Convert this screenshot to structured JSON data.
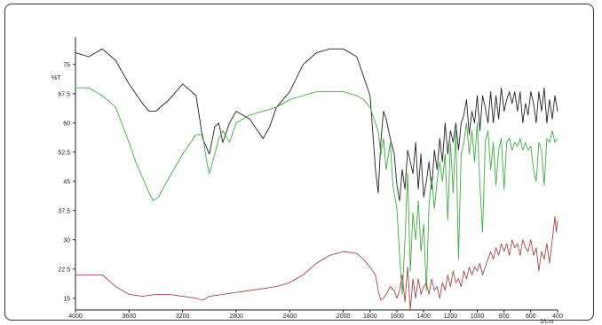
{
  "chart_data": {
    "type": "line",
    "title": "",
    "xlabel": "1/cm",
    "ylabel": "%T",
    "xlim": [
      4000,
      400
    ],
    "ylim": [
      12,
      82
    ],
    "x_ticks": [
      4000,
      3600,
      3200,
      2800,
      2400,
      2000,
      1800,
      1600,
      1400,
      1200,
      1000,
      800,
      600,
      400
    ],
    "y_ticks": [
      15,
      22.5,
      30,
      37.5,
      45,
      52.5,
      60,
      67.5,
      75
    ],
    "x_tick_labels": [
      "4000",
      "3600",
      "3200",
      "2800",
      "2400",
      "2000",
      "1800",
      "1600",
      "1400",
      "1200",
      "1000",
      "800",
      "600",
      "400"
    ],
    "y_tick_labels": [
      "15",
      "22.5",
      "30",
      "37.5",
      "45",
      "52.5",
      "60",
      "67.5",
      "75"
    ],
    "grid": false,
    "legend": "none",
    "series": [
      {
        "color": "#222222",
        "x": [
          4000,
          3900,
          3800,
          3700,
          3600,
          3500,
          3450,
          3400,
          3300,
          3200,
          3100,
          3050,
          3000,
          2960,
          2930,
          2900,
          2850,
          2800,
          2700,
          2600,
          2550,
          2500,
          2400,
          2300,
          2200,
          2100,
          2000,
          1900,
          1850,
          1800,
          1760,
          1740,
          1720,
          1700,
          1680,
          1650,
          1620,
          1600,
          1580,
          1560,
          1540,
          1520,
          1500,
          1480,
          1460,
          1440,
          1420,
          1400,
          1380,
          1360,
          1340,
          1320,
          1300,
          1280,
          1260,
          1240,
          1220,
          1200,
          1180,
          1160,
          1140,
          1120,
          1100,
          1080,
          1060,
          1040,
          1020,
          1000,
          980,
          960,
          940,
          920,
          900,
          880,
          860,
          840,
          820,
          800,
          780,
          760,
          740,
          720,
          700,
          680,
          660,
          640,
          620,
          600,
          580,
          560,
          540,
          520,
          500,
          480,
          460,
          440,
          420,
          400
        ],
        "y": [
          78,
          77,
          79,
          76,
          70,
          65,
          63,
          63,
          66,
          70,
          67,
          56,
          52,
          59,
          60,
          55,
          60,
          63,
          61,
          56,
          59,
          64,
          68,
          75,
          78,
          79,
          79,
          77,
          72,
          67,
          48,
          42,
          55,
          63,
          61,
          56,
          52,
          44,
          40,
          48,
          43,
          53,
          50,
          47,
          55,
          43,
          52,
          41,
          45,
          50,
          43,
          53,
          48,
          56,
          50,
          60,
          52,
          58,
          55,
          60,
          53,
          60,
          62,
          66,
          57,
          63,
          60,
          67,
          58,
          67,
          64,
          60,
          68,
          60,
          67,
          61,
          69,
          63,
          66,
          68,
          65,
          68,
          63,
          68,
          60,
          65,
          62,
          68,
          65,
          60,
          68,
          63,
          69,
          60,
          66,
          61,
          67,
          63
        ]
      },
      {
        "color": "#44aa44",
        "x": [
          4000,
          3900,
          3800,
          3700,
          3600,
          3550,
          3500,
          3450,
          3420,
          3380,
          3300,
          3200,
          3100,
          3050,
          3020,
          3000,
          2960,
          2930,
          2900,
          2850,
          2800,
          2700,
          2600,
          2500,
          2400,
          2300,
          2200,
          2100,
          2000,
          1900,
          1850,
          1800,
          1760,
          1740,
          1720,
          1700,
          1680,
          1650,
          1630,
          1600,
          1580,
          1560,
          1540,
          1520,
          1500,
          1480,
          1460,
          1440,
          1420,
          1400,
          1380,
          1360,
          1340,
          1320,
          1300,
          1280,
          1260,
          1240,
          1220,
          1200,
          1180,
          1160,
          1140,
          1120,
          1100,
          1080,
          1060,
          1040,
          1020,
          1000,
          980,
          960,
          940,
          920,
          900,
          880,
          860,
          840,
          820,
          800,
          780,
          760,
          740,
          720,
          700,
          680,
          660,
          640,
          620,
          600,
          580,
          560,
          540,
          520,
          500,
          480,
          460,
          440,
          420,
          400
        ],
        "y": [
          69,
          69,
          67,
          64,
          55,
          50,
          46,
          42,
          40,
          41,
          46,
          52,
          57,
          57,
          50,
          47,
          52,
          56,
          58,
          55,
          60,
          62,
          63,
          64,
          66,
          67,
          68,
          68,
          68,
          67,
          66,
          64,
          60,
          58,
          52,
          56,
          48,
          55,
          44,
          38,
          26,
          16,
          30,
          47,
          22,
          37,
          30,
          40,
          27,
          34,
          17,
          39,
          46,
          38,
          45,
          50,
          45,
          52,
          35,
          55,
          42,
          58,
          25,
          52,
          55,
          60,
          52,
          58,
          50,
          60,
          44,
          32,
          55,
          58,
          48,
          55,
          44,
          53,
          56,
          43,
          55,
          56,
          53,
          55,
          54,
          56,
          53,
          55,
          53,
          54,
          48,
          45,
          55,
          53,
          44,
          56,
          55,
          58,
          55,
          56
        ]
      },
      {
        "color": "#a04848",
        "x": [
          4000,
          3900,
          3800,
          3700,
          3600,
          3500,
          3400,
          3300,
          3200,
          3100,
          3050,
          3000,
          2900,
          2800,
          2700,
          2600,
          2500,
          2400,
          2300,
          2200,
          2100,
          2000,
          1900,
          1850,
          1800,
          1760,
          1740,
          1720,
          1700,
          1680,
          1650,
          1620,
          1600,
          1580,
          1560,
          1540,
          1520,
          1500,
          1480,
          1460,
          1440,
          1420,
          1400,
          1380,
          1360,
          1340,
          1320,
          1300,
          1280,
          1260,
          1240,
          1220,
          1200,
          1180,
          1160,
          1140,
          1120,
          1100,
          1080,
          1060,
          1040,
          1020,
          1000,
          980,
          960,
          940,
          920,
          900,
          880,
          860,
          840,
          820,
          800,
          780,
          760,
          740,
          720,
          700,
          680,
          660,
          640,
          620,
          600,
          580,
          560,
          540,
          520,
          500,
          480,
          460,
          440,
          420,
          410,
          400
        ],
        "y": [
          21,
          21,
          21,
          18,
          16,
          15.5,
          16,
          16,
          15.5,
          15,
          14.5,
          15.5,
          16,
          16.5,
          17,
          17.5,
          18,
          19,
          21,
          24,
          26,
          27,
          26.5,
          25,
          23,
          21,
          17,
          14.5,
          15,
          16,
          18,
          17,
          15,
          17,
          21,
          14,
          23,
          12,
          20,
          15,
          20,
          16,
          18,
          19,
          16,
          20,
          17,
          18,
          15,
          19,
          17,
          21,
          18,
          22,
          19,
          20,
          18,
          22,
          20,
          23,
          21,
          23,
          22,
          24,
          21,
          23,
          25,
          27,
          25,
          28,
          26,
          29,
          27,
          29,
          26,
          30,
          28,
          29,
          26,
          30,
          28,
          27,
          30,
          26,
          28,
          22,
          27,
          25,
          29,
          24,
          30,
          36,
          32,
          35
        ]
      }
    ]
  }
}
